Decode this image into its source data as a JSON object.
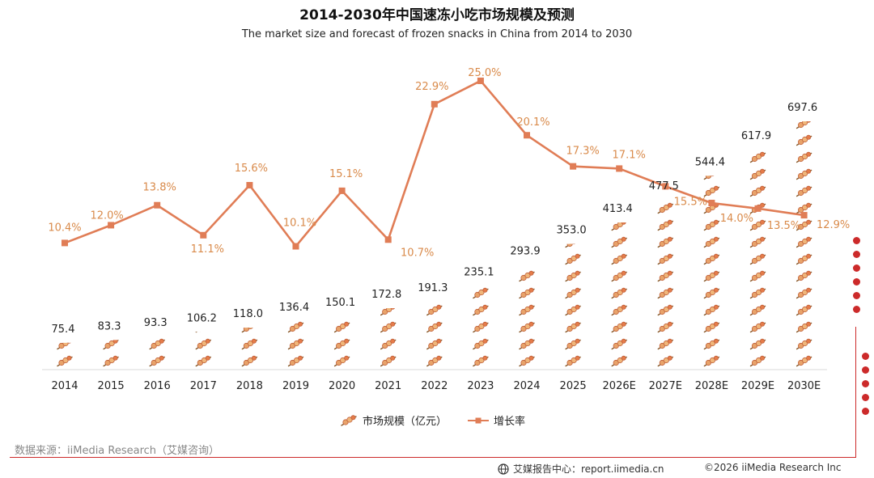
{
  "chart_data": {
    "type": "bar+line",
    "title": "2014-2030年中国速冻小吃市场规模及预测",
    "subtitle": "The market size and forecast of frozen snacks in China from 2014 to 2030",
    "categories": [
      "2014",
      "2015",
      "2016",
      "2017",
      "2018",
      "2019",
      "2020",
      "2021",
      "2022",
      "2023",
      "2024",
      "2025",
      "2026E",
      "2027E",
      "2028E",
      "2029E",
      "2030E"
    ],
    "series": [
      {
        "name": "市场规模（亿元）",
        "type": "pictorial-bar",
        "values": [
          75.4,
          83.3,
          93.3,
          106.2,
          118.0,
          136.4,
          150.1,
          172.8,
          191.3,
          235.1,
          293.9,
          353.0,
          413.4,
          477.5,
          544.4,
          617.9,
          697.6
        ],
        "labels": [
          "75.4",
          "83.3",
          "93.3",
          "106.2",
          "118.0",
          "136.4",
          "150.1",
          "172.8",
          "191.3",
          "235.1",
          "293.9",
          "353.0",
          "413.4",
          "477.5",
          "544.4",
          "617.9",
          "697.6"
        ]
      },
      {
        "name": "增长率",
        "type": "line",
        "values": [
          10.4,
          12.0,
          13.8,
          11.1,
          15.6,
          10.1,
          15.1,
          10.7,
          22.9,
          25.0,
          20.1,
          17.3,
          17.1,
          15.5,
          14.0,
          13.5,
          12.9
        ],
        "labels": [
          "10.4%",
          "12.0%",
          "13.8%",
          "11.1%",
          "15.6%",
          "10.1%",
          "15.1%",
          "10.7%",
          "22.9%",
          "25.0%",
          "20.1%",
          "17.3%",
          "17.1%",
          "15.5%",
          "14.0%",
          "13.5%",
          "12.9%"
        ]
      }
    ],
    "y_bar_range": [
      0,
      750
    ],
    "y_line_range": [
      0,
      27
    ],
    "grid": false
  },
  "colors": {
    "line": "#e07d56",
    "growth_label": "#d98a4a",
    "accent_red": "#cc2a2a",
    "skewer_ball": "#e8a36a",
    "skewer_stick": "#8a5a2b"
  },
  "legend": {
    "bar_label": "市场规模（亿元）",
    "line_label": "增长率"
  },
  "source": "数据来源：iiMedia Research（艾媒咨询）",
  "footer": {
    "site": "艾媒报告中心：report.iimedia.cn",
    "copyright": "©2026  iiMedia Research  Inc"
  }
}
